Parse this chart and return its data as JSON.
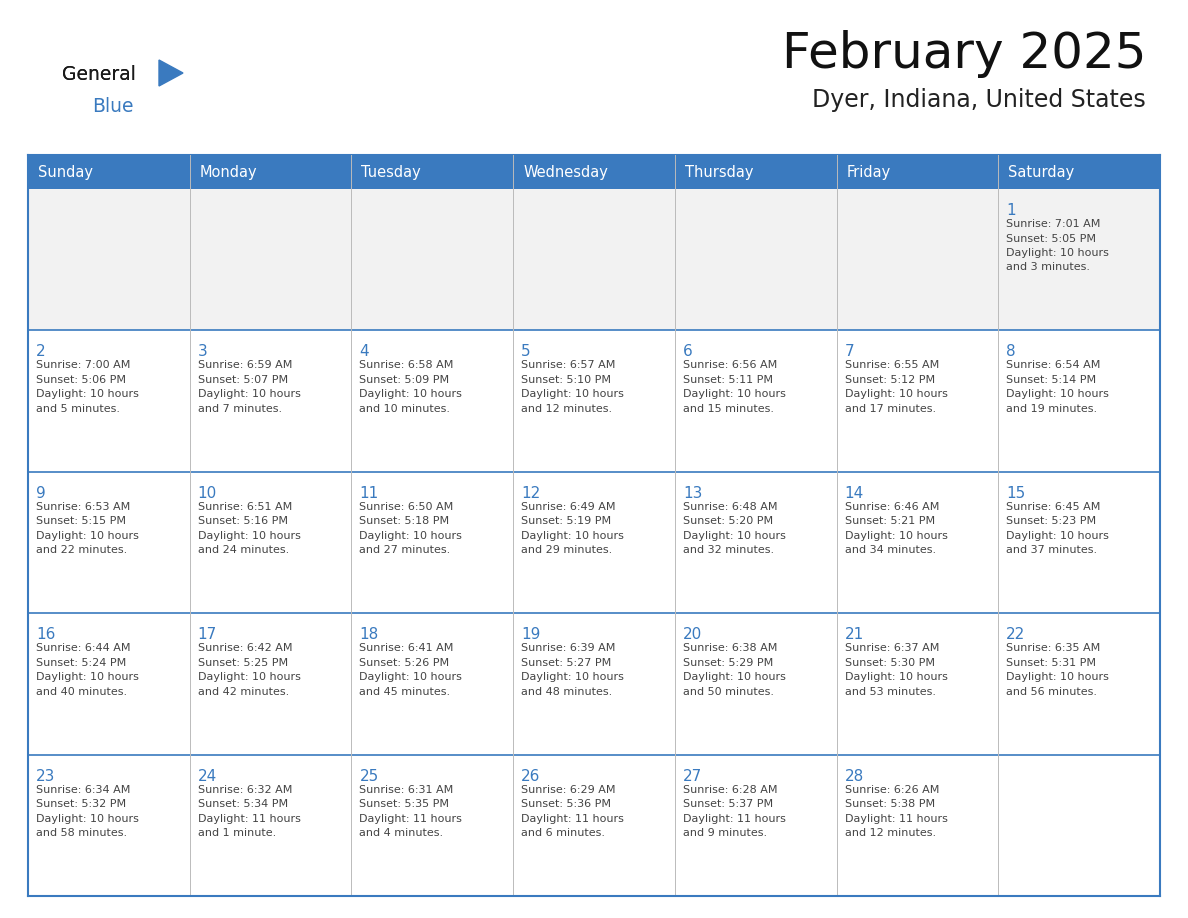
{
  "title": "February 2025",
  "subtitle": "Dyer, Indiana, United States",
  "header_bg": "#3a7abf",
  "header_text_color": "#ffffff",
  "border_color": "#3a7abf",
  "thin_line_color": "#4a7abf",
  "text_color": "#333333",
  "day_num_color": "#3a7abf",
  "days_of_week": [
    "Sunday",
    "Monday",
    "Tuesday",
    "Wednesday",
    "Thursday",
    "Friday",
    "Saturday"
  ],
  "logo_color1": "#1a1a1a",
  "logo_color2": "#3a7abf",
  "calendar": [
    [
      null,
      null,
      null,
      null,
      null,
      null,
      {
        "day": "1",
        "sunrise": "7:01 AM",
        "sunset": "5:05 PM",
        "daylight": "10 hours",
        "daylight2": "and 3 minutes."
      }
    ],
    [
      {
        "day": "2",
        "sunrise": "7:00 AM",
        "sunset": "5:06 PM",
        "daylight": "10 hours",
        "daylight2": "and 5 minutes."
      },
      {
        "day": "3",
        "sunrise": "6:59 AM",
        "sunset": "5:07 PM",
        "daylight": "10 hours",
        "daylight2": "and 7 minutes."
      },
      {
        "day": "4",
        "sunrise": "6:58 AM",
        "sunset": "5:09 PM",
        "daylight": "10 hours",
        "daylight2": "and 10 minutes."
      },
      {
        "day": "5",
        "sunrise": "6:57 AM",
        "sunset": "5:10 PM",
        "daylight": "10 hours",
        "daylight2": "and 12 minutes."
      },
      {
        "day": "6",
        "sunrise": "6:56 AM",
        "sunset": "5:11 PM",
        "daylight": "10 hours",
        "daylight2": "and 15 minutes."
      },
      {
        "day": "7",
        "sunrise": "6:55 AM",
        "sunset": "5:12 PM",
        "daylight": "10 hours",
        "daylight2": "and 17 minutes."
      },
      {
        "day": "8",
        "sunrise": "6:54 AM",
        "sunset": "5:14 PM",
        "daylight": "10 hours",
        "daylight2": "and 19 minutes."
      }
    ],
    [
      {
        "day": "9",
        "sunrise": "6:53 AM",
        "sunset": "5:15 PM",
        "daylight": "10 hours",
        "daylight2": "and 22 minutes."
      },
      {
        "day": "10",
        "sunrise": "6:51 AM",
        "sunset": "5:16 PM",
        "daylight": "10 hours",
        "daylight2": "and 24 minutes."
      },
      {
        "day": "11",
        "sunrise": "6:50 AM",
        "sunset": "5:18 PM",
        "daylight": "10 hours",
        "daylight2": "and 27 minutes."
      },
      {
        "day": "12",
        "sunrise": "6:49 AM",
        "sunset": "5:19 PM",
        "daylight": "10 hours",
        "daylight2": "and 29 minutes."
      },
      {
        "day": "13",
        "sunrise": "6:48 AM",
        "sunset": "5:20 PM",
        "daylight": "10 hours",
        "daylight2": "and 32 minutes."
      },
      {
        "day": "14",
        "sunrise": "6:46 AM",
        "sunset": "5:21 PM",
        "daylight": "10 hours",
        "daylight2": "and 34 minutes."
      },
      {
        "day": "15",
        "sunrise": "6:45 AM",
        "sunset": "5:23 PM",
        "daylight": "10 hours",
        "daylight2": "and 37 minutes."
      }
    ],
    [
      {
        "day": "16",
        "sunrise": "6:44 AM",
        "sunset": "5:24 PM",
        "daylight": "10 hours",
        "daylight2": "and 40 minutes."
      },
      {
        "day": "17",
        "sunrise": "6:42 AM",
        "sunset": "5:25 PM",
        "daylight": "10 hours",
        "daylight2": "and 42 minutes."
      },
      {
        "day": "18",
        "sunrise": "6:41 AM",
        "sunset": "5:26 PM",
        "daylight": "10 hours",
        "daylight2": "and 45 minutes."
      },
      {
        "day": "19",
        "sunrise": "6:39 AM",
        "sunset": "5:27 PM",
        "daylight": "10 hours",
        "daylight2": "and 48 minutes."
      },
      {
        "day": "20",
        "sunrise": "6:38 AM",
        "sunset": "5:29 PM",
        "daylight": "10 hours",
        "daylight2": "and 50 minutes."
      },
      {
        "day": "21",
        "sunrise": "6:37 AM",
        "sunset": "5:30 PM",
        "daylight": "10 hours",
        "daylight2": "and 53 minutes."
      },
      {
        "day": "22",
        "sunrise": "6:35 AM",
        "sunset": "5:31 PM",
        "daylight": "10 hours",
        "daylight2": "and 56 minutes."
      }
    ],
    [
      {
        "day": "23",
        "sunrise": "6:34 AM",
        "sunset": "5:32 PM",
        "daylight": "10 hours",
        "daylight2": "and 58 minutes."
      },
      {
        "day": "24",
        "sunrise": "6:32 AM",
        "sunset": "5:34 PM",
        "daylight": "11 hours",
        "daylight2": "and 1 minute."
      },
      {
        "day": "25",
        "sunrise": "6:31 AM",
        "sunset": "5:35 PM",
        "daylight": "11 hours",
        "daylight2": "and 4 minutes."
      },
      {
        "day": "26",
        "sunrise": "6:29 AM",
        "sunset": "5:36 PM",
        "daylight": "11 hours",
        "daylight2": "and 6 minutes."
      },
      {
        "day": "27",
        "sunrise": "6:28 AM",
        "sunset": "5:37 PM",
        "daylight": "11 hours",
        "daylight2": "and 9 minutes."
      },
      {
        "day": "28",
        "sunrise": "6:26 AM",
        "sunset": "5:38 PM",
        "daylight": "11 hours",
        "daylight2": "and 12 minutes."
      },
      null
    ]
  ]
}
